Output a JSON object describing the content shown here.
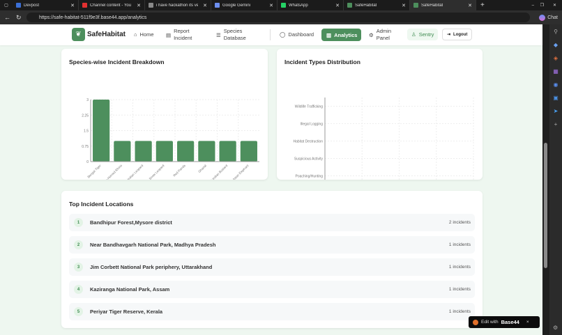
{
  "browser": {
    "tabs": [
      {
        "label": "Devpost",
        "color": "#3b6fd6"
      },
      {
        "label": "Channel content - YouTube",
        "color": "#e23030"
      },
      {
        "label": "i have hackathon its very la",
        "color": "#888"
      },
      {
        "label": "Google Gemini",
        "color": "#6d8ff0"
      },
      {
        "label": "WhatsApp",
        "color": "#25d366"
      },
      {
        "label": "SafeHabitat",
        "color": "#4d8f5d"
      },
      {
        "label": "SafeHabitat",
        "color": "#4d8f5d"
      }
    ],
    "url": "https://safe-habitat-511f9e3f.base44.app/analytics",
    "chat_label": "Chat"
  },
  "nav": {
    "brand": "SafeHabitat",
    "items": [
      {
        "label": "Home",
        "icon": "home-icon"
      },
      {
        "label": "Report Incident",
        "icon": "file-icon"
      },
      {
        "label": "Species Database",
        "icon": "database-icon"
      },
      {
        "label": "Dashboard",
        "icon": "shield-icon"
      },
      {
        "label": "Analytics",
        "icon": "bar-chart-icon",
        "active": true
      },
      {
        "label": "Admin Panel",
        "icon": "gear-icon"
      }
    ],
    "user": "Sentry",
    "logout": "Logout"
  },
  "accent": "#4d8f5d",
  "chart_data": [
    {
      "type": "bar",
      "title": "Species-wise Incident Breakdown",
      "categories": [
        "Bengal Tiger",
        "One-Horned Rhino",
        "Indian Leopard",
        "Snow Leopard",
        "Red Panda",
        "Gharial",
        "Great Indian Bustard",
        "Asian Elephant"
      ],
      "values": [
        3,
        1,
        1,
        1,
        1,
        1,
        1,
        1
      ],
      "ylim": [
        0,
        3
      ],
      "yticks": [
        "0",
        "0.75",
        "1.5",
        "2.25",
        "3"
      ],
      "grid": true,
      "color": "#4d8f5d"
    },
    {
      "type": "bar",
      "orientation": "horizontal",
      "title": "Incident Types Distribution",
      "categories": [
        "Wildlife Trafficking",
        "Illegal Logging",
        "Habitat Destruction",
        "Suspicious Activity",
        "Poaching/Hunting"
      ],
      "values": [
        0,
        0,
        0,
        0,
        0
      ],
      "xlim": [
        0,
        1
      ],
      "xticks": [
        "0",
        "0.25",
        "0.5",
        "0.75",
        "1"
      ],
      "grid": true
    }
  ],
  "locations": {
    "title": "Top Incident Locations",
    "items": [
      {
        "rank": "1",
        "name": "Bandhipur Forest,Mysore district",
        "count": "2 incidents"
      },
      {
        "rank": "2",
        "name": "Near Bandhavgarh National Park, Madhya Pradesh",
        "count": "1 incidents"
      },
      {
        "rank": "3",
        "name": "Jim Corbett National Park periphery, Uttarakhand",
        "count": "1 incidents"
      },
      {
        "rank": "4",
        "name": "Kaziranga National Park, Assam",
        "count": "1 incidents"
      },
      {
        "rank": "5",
        "name": "Periyar Tiger Reserve, Kerala",
        "count": "1 incidents"
      }
    ]
  },
  "badge": {
    "prefix": "Edit with",
    "brand": "Base44"
  }
}
